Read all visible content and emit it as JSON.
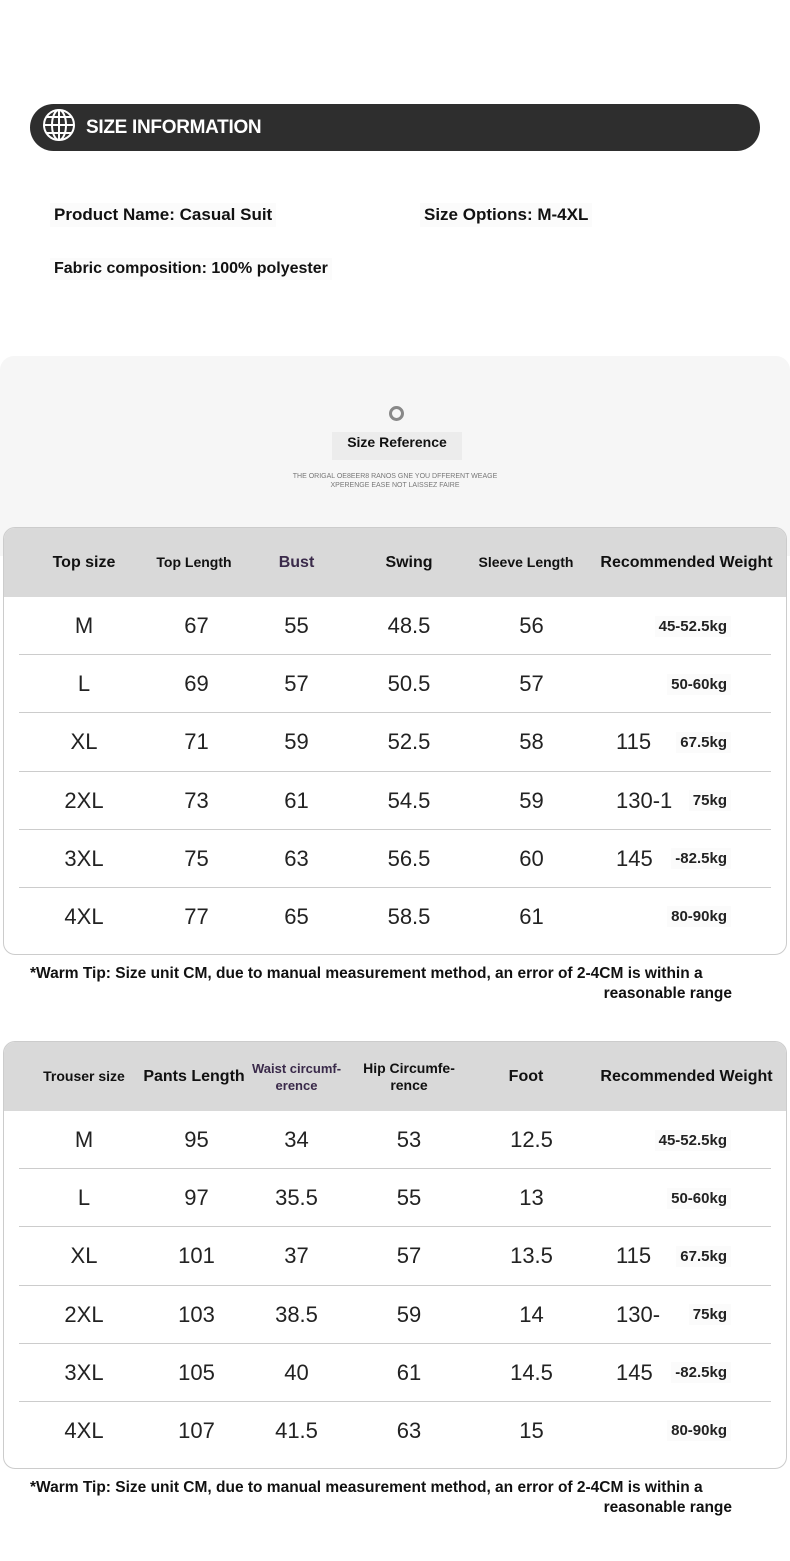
{
  "banner": {
    "title": "SIZE INFORMATION"
  },
  "info": {
    "product": "Product Name: Casual Suit",
    "sizes": "Size Options: M-4XL",
    "fabric": "Fabric composition: 100% polyester"
  },
  "reference": {
    "title": "Size Reference",
    "sub1": "THE ORIGAL OE8EER8 RANOS GNE YOU DFFERENT WEAGE",
    "sub2": "XPERENGE EASE NOT LAISSEZ FAIRE"
  },
  "top_table": {
    "headers": [
      "Top size",
      "Top Length",
      "Bust",
      "Swing",
      "Sleeve Length",
      "Recommended Weight"
    ],
    "rows": [
      {
        "size": "M",
        "a": "67",
        "b": "55",
        "c": "48.5",
        "d": "56",
        "wn": "",
        "wk": "45-52.5kg"
      },
      {
        "size": "L",
        "a": "69",
        "b": "57",
        "c": "50.5",
        "d": "57",
        "wn": "",
        "wk": "50-60kg"
      },
      {
        "size": "XL",
        "a": "71",
        "b": "59",
        "c": "52.5",
        "d": "58",
        "wn": "115",
        "wk": "67.5kg"
      },
      {
        "size": "2XL",
        "a": "73",
        "b": "61",
        "c": "54.5",
        "d": "59",
        "wn": "130-1",
        "wk": "75kg"
      },
      {
        "size": "3XL",
        "a": "75",
        "b": "63",
        "c": "56.5",
        "d": "60",
        "wn": "145",
        "wk": "-82.5kg"
      },
      {
        "size": "4XL",
        "a": "77",
        "b": "65",
        "c": "58.5",
        "d": "61",
        "wn": "",
        "wk": "80-90kg"
      }
    ]
  },
  "tip1": {
    "line1": "*Warm Tip: Size unit CM, due to manual measurement method, an error of 2-4CM is within a",
    "line2": "reasonable range"
  },
  "trouser_table": {
    "headers": [
      "Trouser size",
      "Pants Length",
      "Waist circumf-erence",
      "Hip Circumfe-rence",
      "Foot",
      "Recommended Weight"
    ],
    "rows": [
      {
        "size": "M",
        "a": "95",
        "b": "34",
        "c": "53",
        "d": "12.5",
        "wn": "",
        "wk": "45-52.5kg"
      },
      {
        "size": "L",
        "a": "97",
        "b": "35.5",
        "c": "55",
        "d": "13",
        "wn": "",
        "wk": "50-60kg"
      },
      {
        "size": "XL",
        "a": "101",
        "b": "37",
        "c": "57",
        "d": "13.5",
        "wn": "115",
        "wk": "67.5kg"
      },
      {
        "size": "2XL",
        "a": "103",
        "b": "38.5",
        "c": "59",
        "d": "14",
        "wn": "130-",
        "wk": "75kg"
      },
      {
        "size": "3XL",
        "a": "105",
        "b": "40",
        "c": "61",
        "d": "14.5",
        "wn": "145",
        "wk": "-82.5kg"
      },
      {
        "size": "4XL",
        "a": "107",
        "b": "41.5",
        "c": "63",
        "d": "15",
        "wn": "",
        "wk": "80-90kg"
      }
    ]
  },
  "tip2": {
    "line1": "*Warm Tip: Size unit CM, due to manual measurement method, an error of 2-4CM is within a",
    "line2": "reasonable range"
  }
}
